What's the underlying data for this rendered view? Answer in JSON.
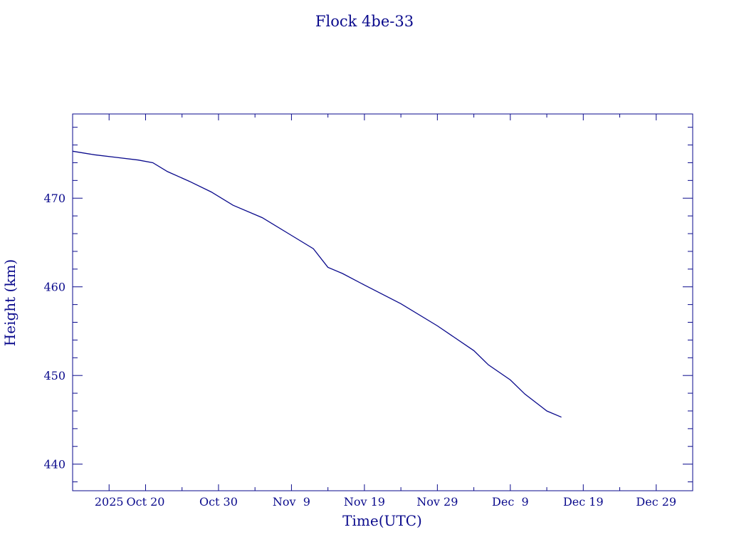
{
  "colors": {
    "ink": "#0a0a8c"
  },
  "chart_data": {
    "type": "line",
    "title": "Flock 4be-33",
    "xlabel": "Time(UTC)",
    "ylabel": "Height (km)",
    "xlim": [
      "2025-10-10",
      "2026-01-03"
    ],
    "ylim": [
      437,
      479.5
    ],
    "x_ticks": [
      {
        "date": "2025-10-15",
        "label": "2025"
      },
      {
        "date": "2025-10-20",
        "label": "Oct 20"
      },
      {
        "date": "2025-10-30",
        "label": "Oct 30"
      },
      {
        "date": "2025-11-09",
        "label": "Nov  9"
      },
      {
        "date": "2025-11-19",
        "label": "Nov 19"
      },
      {
        "date": "2025-11-29",
        "label": "Nov 29"
      },
      {
        "date": "2025-12-09",
        "label": "Dec  9"
      },
      {
        "date": "2025-12-19",
        "label": "Dec 19"
      },
      {
        "date": "2025-12-29",
        "label": "Dec 29"
      }
    ],
    "y_ticks": [
      440,
      450,
      460,
      470
    ],
    "grid": false,
    "series": [
      {
        "points": [
          [
            "2025-10-10",
            475.3
          ],
          [
            "2025-10-13",
            474.9
          ],
          [
            "2025-10-16",
            474.6
          ],
          [
            "2025-10-19",
            474.3
          ],
          [
            "2025-10-21",
            474.0
          ],
          [
            "2025-10-23",
            473.0
          ],
          [
            "2025-10-26",
            471.9
          ],
          [
            "2025-10-29",
            470.7
          ],
          [
            "2025-11-01",
            469.2
          ],
          [
            "2025-11-05",
            467.8
          ],
          [
            "2025-11-09",
            465.8
          ],
          [
            "2025-11-12",
            464.3
          ],
          [
            "2025-11-14",
            462.2
          ],
          [
            "2025-11-16",
            461.5
          ],
          [
            "2025-11-19",
            460.2
          ],
          [
            "2025-11-24",
            458.1
          ],
          [
            "2025-11-29",
            455.6
          ],
          [
            "2025-12-04",
            452.8
          ],
          [
            "2025-12-06",
            451.2
          ],
          [
            "2025-12-09",
            449.5
          ],
          [
            "2025-12-11",
            447.9
          ],
          [
            "2025-12-14",
            446.0
          ],
          [
            "2025-12-16",
            445.3
          ]
        ]
      }
    ]
  }
}
